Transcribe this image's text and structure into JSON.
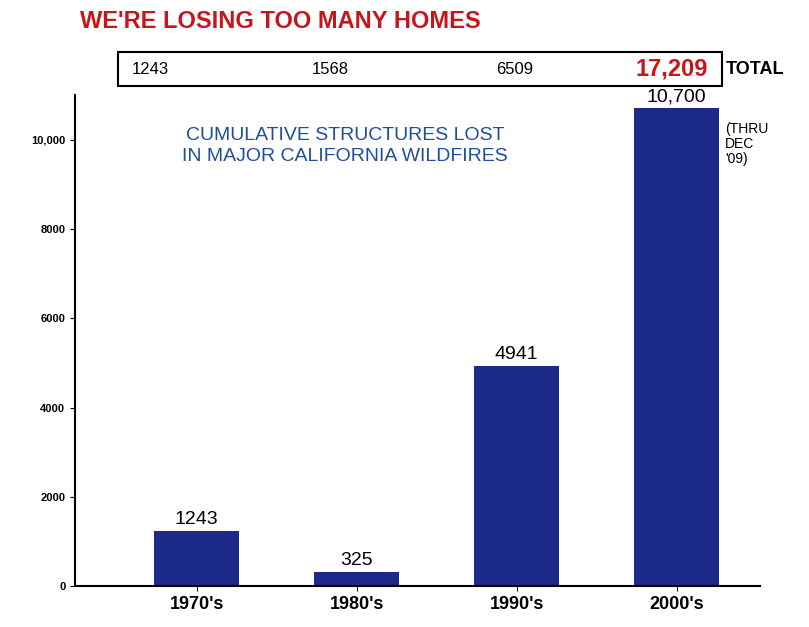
{
  "chart_data": {
    "type": "bar",
    "title": "WE'RE LOSING TOO MANY HOMES",
    "subtitle": "CUMULATIVE STRUCTURES LOST\nIN MAJOR CALIFORNIA WILDFIRES",
    "categories": [
      "1970's",
      "1980's",
      "1990's",
      "2000's"
    ],
    "values": [
      1243,
      325,
      4941,
      10700
    ],
    "value_labels": [
      "1243",
      "325",
      "4941",
      "10,700"
    ],
    "data_labels": true,
    "color": "#1c2a8a",
    "ylim": [
      0,
      11000
    ],
    "yticks": [
      0,
      2000,
      4000,
      6000,
      8000,
      {
        "value": 10000,
        "label": "10,000"
      }
    ],
    "annotations": [
      {
        "category": "2000's",
        "text": "(THRU\nDEC\n'09)",
        "y": 10400
      }
    ],
    "cumulative_totals": {
      "label": "TOTAL",
      "values": [
        1243,
        1568,
        6509,
        17209
      ],
      "value_labels": [
        "1243",
        "1568",
        "6509",
        "17,209"
      ],
      "colors": [
        "#000000",
        "#000000",
        "#000000",
        "#c8151b"
      ]
    }
  }
}
